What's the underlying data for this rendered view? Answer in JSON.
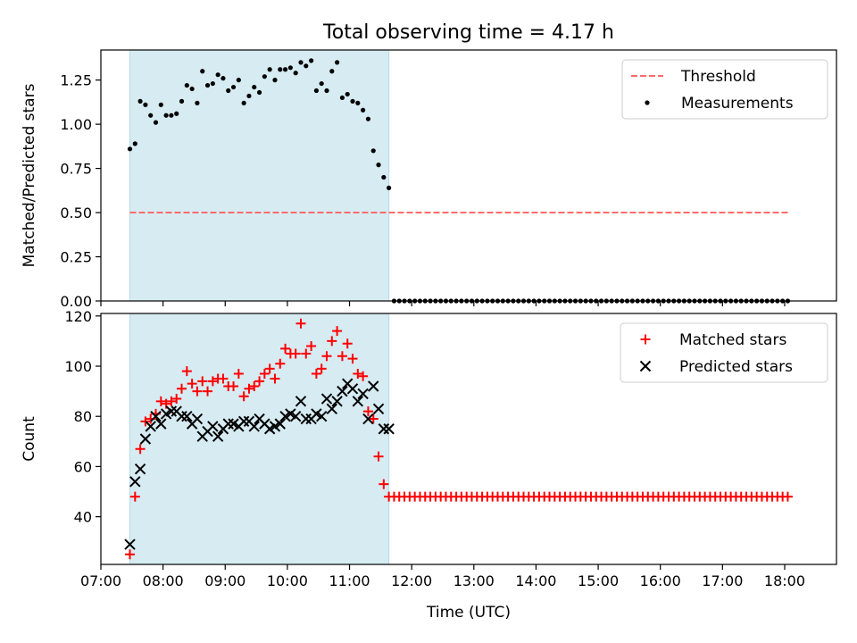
{
  "title": "Total observing time = 4.17 h",
  "chart_data": [
    {
      "type": "scatter",
      "panel": "top",
      "ylabel": "Matched/Predicted stars",
      "xlabel": "",
      "x_range": [
        "07:00",
        "18:50"
      ],
      "ylim": [
        0,
        1.42
      ],
      "yticks": [
        0.0,
        0.25,
        0.5,
        0.75,
        1.0,
        1.25
      ],
      "ytick_labels": [
        "0.00",
        "0.25",
        "0.50",
        "0.75",
        "1.00",
        "1.25"
      ],
      "observing_window": [
        "07:28",
        "11:38"
      ],
      "observing_window_color": "#add8e6",
      "threshold": {
        "name": "Threshold",
        "value": 0.5,
        "x_start": "07:28",
        "x_end": "18:05",
        "color": "#ff6b6b"
      },
      "legend": {
        "position": "top-right",
        "entries": [
          "Threshold",
          "Measurements"
        ]
      },
      "series": [
        {
          "name": "Measurements",
          "color": "#000000",
          "points": [
            [
              "07:28",
              0.86
            ],
            [
              "07:33",
              0.89
            ],
            [
              "07:38",
              1.13
            ],
            [
              "07:43",
              1.11
            ],
            [
              "07:48",
              1.05
            ],
            [
              "07:53",
              1.01
            ],
            [
              "07:58",
              1.11
            ],
            [
              "08:03",
              1.05
            ],
            [
              "08:08",
              1.05
            ],
            [
              "08:13",
              1.06
            ],
            [
              "08:18",
              1.13
            ],
            [
              "08:23",
              1.22
            ],
            [
              "08:28",
              1.2
            ],
            [
              "08:33",
              1.12
            ],
            [
              "08:38",
              1.3
            ],
            [
              "08:43",
              1.22
            ],
            [
              "08:48",
              1.23
            ],
            [
              "08:53",
              1.28
            ],
            [
              "08:58",
              1.26
            ],
            [
              "09:03",
              1.19
            ],
            [
              "09:08",
              1.21
            ],
            [
              "09:13",
              1.25
            ],
            [
              "09:18",
              1.12
            ],
            [
              "09:23",
              1.16
            ],
            [
              "09:28",
              1.21
            ],
            [
              "09:33",
              1.18
            ],
            [
              "09:38",
              1.27
            ],
            [
              "09:43",
              1.31
            ],
            [
              "09:48",
              1.25
            ],
            [
              "09:53",
              1.31
            ],
            [
              "09:58",
              1.31
            ],
            [
              "10:03",
              1.32
            ],
            [
              "10:08",
              1.29
            ],
            [
              "10:13",
              1.35
            ],
            [
              "10:18",
              1.33
            ],
            [
              "10:23",
              1.36
            ],
            [
              "10:28",
              1.19
            ],
            [
              "10:33",
              1.23
            ],
            [
              "10:38",
              1.19
            ],
            [
              "10:43",
              1.3
            ],
            [
              "10:48",
              1.35
            ],
            [
              "10:53",
              1.15
            ],
            [
              "10:58",
              1.17
            ],
            [
              "11:03",
              1.13
            ],
            [
              "11:08",
              1.12
            ],
            [
              "11:13",
              1.08
            ],
            [
              "11:18",
              1.03
            ],
            [
              "11:23",
              0.85
            ],
            [
              "11:28",
              0.77
            ],
            [
              "11:33",
              0.7
            ],
            [
              "11:38",
              0.64
            ]
          ],
          "zero_points": {
            "x_start": "11:43",
            "x_end": "18:03",
            "step_min": 5,
            "value": 0
          }
        }
      ]
    },
    {
      "type": "scatter",
      "panel": "bottom",
      "ylabel": "Count",
      "xlabel": "Time (UTC)",
      "x_range": [
        "07:00",
        "18:50"
      ],
      "xticks": [
        "07:00",
        "08:00",
        "09:00",
        "10:00",
        "11:00",
        "12:00",
        "13:00",
        "14:00",
        "15:00",
        "16:00",
        "17:00",
        "18:00"
      ],
      "ylim": [
        21,
        121
      ],
      "yticks": [
        40,
        60,
        80,
        100,
        120
      ],
      "ytick_labels": [
        "40",
        "60",
        "80",
        "100",
        "120"
      ],
      "observing_window": [
        "07:28",
        "11:38"
      ],
      "legend": {
        "position": "top-right",
        "entries": [
          "Matched stars",
          "Predicted stars"
        ]
      },
      "series": [
        {
          "name": "Matched stars",
          "marker": "+",
          "color": "#ff0000",
          "points": [
            [
              "07:28",
              25
            ],
            [
              "07:33",
              48
            ],
            [
              "07:38",
              67
            ],
            [
              "07:43",
              78
            ],
            [
              "07:48",
              79
            ],
            [
              "07:53",
              81
            ],
            [
              "07:58",
              86
            ],
            [
              "08:03",
              85
            ],
            [
              "08:08",
              86
            ],
            [
              "08:13",
              87
            ],
            [
              "08:18",
              91
            ],
            [
              "08:23",
              98
            ],
            [
              "08:28",
              93
            ],
            [
              "08:33",
              90
            ],
            [
              "08:38",
              94
            ],
            [
              "08:43",
              90
            ],
            [
              "08:48",
              94
            ],
            [
              "08:53",
              95
            ],
            [
              "08:58",
              95
            ],
            [
              "09:03",
              92
            ],
            [
              "09:08",
              92
            ],
            [
              "09:13",
              97
            ],
            [
              "09:18",
              88
            ],
            [
              "09:23",
              91
            ],
            [
              "09:28",
              92
            ],
            [
              "09:33",
              94
            ],
            [
              "09:38",
              97
            ],
            [
              "09:43",
              99
            ],
            [
              "09:48",
              95
            ],
            [
              "09:53",
              101
            ],
            [
              "09:58",
              107
            ],
            [
              "10:03",
              105
            ],
            [
              "10:08",
              105
            ],
            [
              "10:13",
              117
            ],
            [
              "10:18",
              105
            ],
            [
              "10:23",
              108
            ],
            [
              "10:28",
              97
            ],
            [
              "10:33",
              99
            ],
            [
              "10:38",
              104
            ],
            [
              "10:43",
              110
            ],
            [
              "10:48",
              114
            ],
            [
              "10:53",
              104
            ],
            [
              "10:58",
              109
            ],
            [
              "11:03",
              103
            ],
            [
              "11:08",
              97
            ],
            [
              "11:13",
              96
            ],
            [
              "11:18",
              82
            ],
            [
              "11:23",
              79
            ],
            [
              "11:28",
              64
            ],
            [
              "11:33",
              53
            ],
            [
              "11:38",
              48
            ]
          ],
          "flat_points": {
            "x_start": "11:43",
            "x_end": "18:03",
            "step_min": 5,
            "value": 48
          }
        },
        {
          "name": "Predicted stars",
          "marker": "x",
          "color": "#000000",
          "points": [
            [
              "07:28",
              29
            ],
            [
              "07:33",
              54
            ],
            [
              "07:38",
              59
            ],
            [
              "07:43",
              71
            ],
            [
              "07:48",
              76
            ],
            [
              "07:53",
              80
            ],
            [
              "07:58",
              77
            ],
            [
              "08:03",
              81
            ],
            [
              "08:08",
              82
            ],
            [
              "08:13",
              82
            ],
            [
              "08:18",
              80
            ],
            [
              "08:23",
              80
            ],
            [
              "08:28",
              77
            ],
            [
              "08:33",
              79
            ],
            [
              "08:38",
              72
            ],
            [
              "08:43",
              74
            ],
            [
              "08:48",
              76
            ],
            [
              "08:53",
              72
            ],
            [
              "08:58",
              75
            ],
            [
              "09:03",
              77
            ],
            [
              "09:08",
              77
            ],
            [
              "09:13",
              76
            ],
            [
              "09:18",
              78
            ],
            [
              "09:23",
              78
            ],
            [
              "09:28",
              76
            ],
            [
              "09:33",
              79
            ],
            [
              "09:38",
              77
            ],
            [
              "09:43",
              75
            ],
            [
              "09:48",
              76
            ],
            [
              "09:53",
              77
            ],
            [
              "09:58",
              80
            ],
            [
              "10:03",
              81
            ],
            [
              "10:08",
              80
            ],
            [
              "10:13",
              86
            ],
            [
              "10:18",
              79
            ],
            [
              "10:23",
              79
            ],
            [
              "10:28",
              81
            ],
            [
              "10:33",
              80
            ],
            [
              "10:38",
              87
            ],
            [
              "10:43",
              83
            ],
            [
              "10:48",
              86
            ],
            [
              "10:53",
              90
            ],
            [
              "10:58",
              93
            ],
            [
              "11:03",
              91
            ],
            [
              "11:08",
              86
            ],
            [
              "11:13",
              89
            ],
            [
              "11:18",
              79
            ],
            [
              "11:23",
              92
            ],
            [
              "11:28",
              83
            ],
            [
              "11:33",
              75
            ],
            [
              "11:38",
              75
            ]
          ]
        }
      ]
    }
  ]
}
